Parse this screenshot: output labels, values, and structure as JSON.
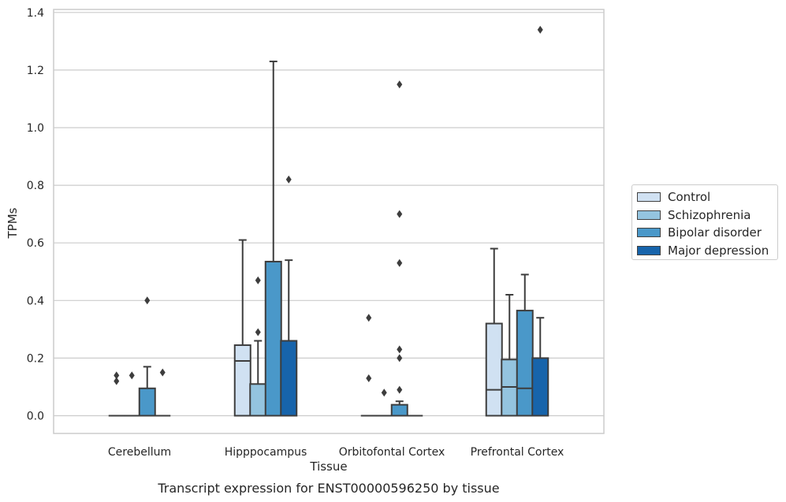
{
  "chart_data": {
    "type": "box",
    "title": "",
    "caption": "Transcript expression for ENST00000596250 by tissue",
    "xlabel": "Tissue",
    "ylabel": "TPMs",
    "ylim": [
      -0.062,
      1.41
    ],
    "yticks": [
      0.0,
      0.2,
      0.4,
      0.6,
      0.8,
      1.0,
      1.2,
      1.4
    ],
    "ytick_labels": [
      "0.0",
      "0.2",
      "0.4",
      "0.6",
      "0.8",
      "1.0",
      "1.2",
      "1.4"
    ],
    "grid": true,
    "legend_position": "right",
    "categories": [
      "Cerebellum",
      "Hipppocampus",
      "Orbitofontal Cortex",
      "Prefrontal Cortex"
    ],
    "series": [
      {
        "name": "Control",
        "color": "#d0e1f2",
        "boxes": [
          {
            "q1": 0.0,
            "median": 0.0,
            "q3": 0.0,
            "whisker_low": 0.0,
            "whisker_high": 0.0,
            "outliers": [
              0.12,
              0.14
            ]
          },
          {
            "q1": 0.0,
            "median": 0.19,
            "q3": 0.245,
            "whisker_low": 0.0,
            "whisker_high": 0.61,
            "outliers": []
          },
          {
            "q1": 0.0,
            "median": 0.0,
            "q3": 0.0,
            "whisker_low": 0.0,
            "whisker_high": 0.0,
            "outliers": [
              0.13,
              0.34
            ]
          },
          {
            "q1": 0.0,
            "median": 0.09,
            "q3": 0.32,
            "whisker_low": 0.0,
            "whisker_high": 0.58,
            "outliers": []
          }
        ]
      },
      {
        "name": "Schizophrenia",
        "color": "#94c4df",
        "boxes": [
          {
            "q1": 0.0,
            "median": 0.0,
            "q3": 0.0,
            "whisker_low": 0.0,
            "whisker_high": 0.0,
            "outliers": [
              0.14
            ]
          },
          {
            "q1": 0.0,
            "median": 0.0,
            "q3": 0.11,
            "whisker_low": 0.0,
            "whisker_high": 0.26,
            "outliers": [
              0.29,
              0.47
            ]
          },
          {
            "q1": 0.0,
            "median": 0.0,
            "q3": 0.0,
            "whisker_low": 0.0,
            "whisker_high": 0.0,
            "outliers": [
              0.08
            ]
          },
          {
            "q1": 0.0,
            "median": 0.1,
            "q3": 0.195,
            "whisker_low": 0.0,
            "whisker_high": 0.42,
            "outliers": []
          }
        ]
      },
      {
        "name": "Bipolar disorder",
        "color": "#4a98c9",
        "boxes": [
          {
            "q1": 0.0,
            "median": 0.0,
            "q3": 0.095,
            "whisker_low": 0.0,
            "whisker_high": 0.17,
            "outliers": [
              0.4
            ]
          },
          {
            "q1": 0.0,
            "median": 0.0,
            "q3": 0.535,
            "whisker_low": 0.0,
            "whisker_high": 1.23,
            "outliers": []
          },
          {
            "q1": 0.0,
            "median": 0.0,
            "q3": 0.038,
            "whisker_low": 0.0,
            "whisker_high": 0.05,
            "outliers": [
              0.09,
              0.2,
              0.23,
              0.53,
              0.7,
              1.15
            ]
          },
          {
            "q1": 0.0,
            "median": 0.095,
            "q3": 0.365,
            "whisker_low": 0.0,
            "whisker_high": 0.49,
            "outliers": []
          }
        ]
      },
      {
        "name": "Major depression",
        "color": "#1764ab",
        "boxes": [
          {
            "q1": 0.0,
            "median": 0.0,
            "q3": 0.0,
            "whisker_low": 0.0,
            "whisker_high": 0.0,
            "outliers": [
              0.15
            ]
          },
          {
            "q1": 0.0,
            "median": 0.0,
            "q3": 0.26,
            "whisker_low": 0.0,
            "whisker_high": 0.54,
            "outliers": [
              0.82
            ]
          },
          {
            "q1": 0.0,
            "median": 0.0,
            "q3": 0.0,
            "whisker_low": 0.0,
            "whisker_high": 0.0,
            "outliers": []
          },
          {
            "q1": 0.0,
            "median": 0.0,
            "q3": 0.2,
            "whisker_low": 0.0,
            "whisker_high": 0.34,
            "outliers": [
              1.34
            ]
          }
        ]
      }
    ]
  }
}
